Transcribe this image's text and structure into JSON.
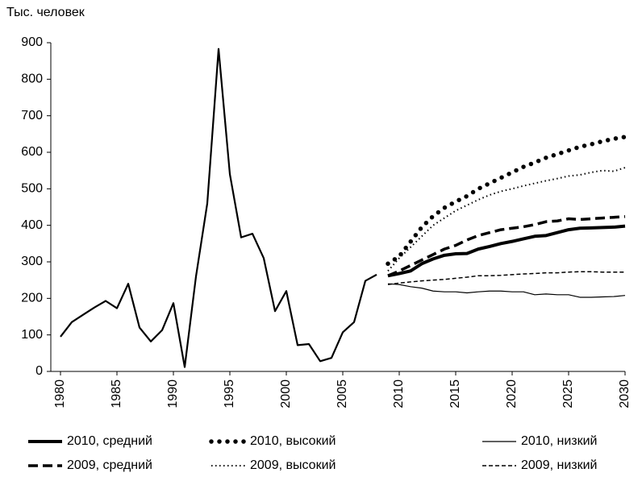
{
  "chart_data": {
    "type": "line",
    "ylabel": "Тыс. человек",
    "xlim": [
      1980,
      2030
    ],
    "xticks": [
      1980,
      1985,
      1990,
      1995,
      2000,
      2005,
      2010,
      2015,
      2020,
      2025,
      2030
    ],
    "ylim": [
      0,
      900
    ],
    "yticks": [
      0,
      100,
      200,
      300,
      400,
      500,
      600,
      700,
      800,
      900
    ],
    "series": [
      {
        "color": "#000000",
        "style": "solid",
        "width": 2.2,
        "x": [
          1980,
          1981,
          1982,
          1983,
          1984,
          1985,
          1986,
          1987,
          1988,
          1989,
          1990,
          1991,
          1992,
          1993,
          1994,
          1995,
          1996,
          1997,
          1998,
          1999,
          2000,
          2001,
          2002,
          2003,
          2004,
          2005,
          2006,
          2007,
          2008
        ],
        "values": [
          95,
          135,
          155,
          175,
          193,
          173,
          240,
          120,
          82,
          113,
          187,
          12,
          260,
          460,
          883,
          540,
          367,
          377,
          310,
          165,
          220,
          72,
          75,
          28,
          37,
          107,
          135,
          248,
          265
        ]
      },
      {
        "name": "2010, средний",
        "color": "#000000",
        "style": "solid",
        "width": 4,
        "x": [
          2009,
          2010,
          2011,
          2012,
          2013,
          2014,
          2015,
          2016,
          2017,
          2018,
          2019,
          2020,
          2021,
          2022,
          2023,
          2024,
          2025,
          2026,
          2027,
          2028,
          2029,
          2030
        ],
        "values": [
          262,
          268,
          275,
          295,
          308,
          318,
          322,
          323,
          335,
          342,
          350,
          356,
          363,
          370,
          372,
          380,
          388,
          392,
          393,
          394,
          395,
          398
        ]
      },
      {
        "name": "2010, высокий",
        "color": "#000000",
        "style": "bigdot",
        "width": 5.5,
        "x": [
          2009,
          2010,
          2011,
          2012,
          2013,
          2014,
          2015,
          2016,
          2017,
          2018,
          2019,
          2020,
          2021,
          2022,
          2023,
          2024,
          2025,
          2026,
          2027,
          2028,
          2029,
          2030
        ],
        "values": [
          295,
          315,
          355,
          395,
          425,
          448,
          465,
          480,
          500,
          515,
          530,
          545,
          560,
          572,
          585,
          595,
          605,
          615,
          622,
          630,
          637,
          642
        ]
      },
      {
        "name": "2010, низкий",
        "color": "#000000",
        "style": "solid",
        "width": 1.2,
        "x": [
          2009,
          2010,
          2011,
          2012,
          2013,
          2014,
          2015,
          2016,
          2017,
          2018,
          2019,
          2020,
          2021,
          2022,
          2023,
          2024,
          2025,
          2026,
          2027,
          2028,
          2029,
          2030
        ],
        "values": [
          240,
          238,
          232,
          228,
          220,
          218,
          218,
          215,
          218,
          220,
          220,
          218,
          218,
          210,
          212,
          210,
          210,
          203,
          203,
          204,
          205,
          208
        ]
      },
      {
        "name": "2009, средний",
        "color": "#000000",
        "style": "dashed",
        "width": 3.5,
        "x": [
          2009,
          2010,
          2011,
          2012,
          2013,
          2014,
          2015,
          2016,
          2017,
          2018,
          2019,
          2020,
          2021,
          2022,
          2023,
          2024,
          2025,
          2026,
          2027,
          2028,
          2029,
          2030
        ],
        "values": [
          262,
          275,
          290,
          305,
          320,
          335,
          345,
          360,
          372,
          380,
          388,
          392,
          396,
          402,
          410,
          412,
          418,
          416,
          418,
          420,
          422,
          424
        ]
      },
      {
        "name": "2009, высокий",
        "color": "#000000",
        "style": "dotted",
        "width": 2,
        "x": [
          2009,
          2010,
          2011,
          2012,
          2013,
          2014,
          2015,
          2016,
          2017,
          2018,
          2019,
          2020,
          2021,
          2022,
          2023,
          2024,
          2025,
          2026,
          2027,
          2028,
          2029,
          2030
        ],
        "values": [
          275,
          310,
          340,
          370,
          400,
          420,
          440,
          455,
          470,
          483,
          493,
          500,
          508,
          515,
          522,
          528,
          535,
          538,
          545,
          550,
          548,
          558
        ]
      },
      {
        "name": "2009, низкий",
        "color": "#000000",
        "style": "thindash",
        "width": 1.5,
        "x": [
          2009,
          2010,
          2011,
          2012,
          2013,
          2014,
          2015,
          2016,
          2017,
          2018,
          2019,
          2020,
          2021,
          2022,
          2023,
          2024,
          2025,
          2026,
          2027,
          2028,
          2029,
          2030
        ],
        "values": [
          238,
          242,
          245,
          248,
          250,
          252,
          255,
          258,
          262,
          262,
          263,
          265,
          267,
          268,
          270,
          270,
          272,
          273,
          273,
          272,
          272,
          272
        ]
      }
    ]
  }
}
